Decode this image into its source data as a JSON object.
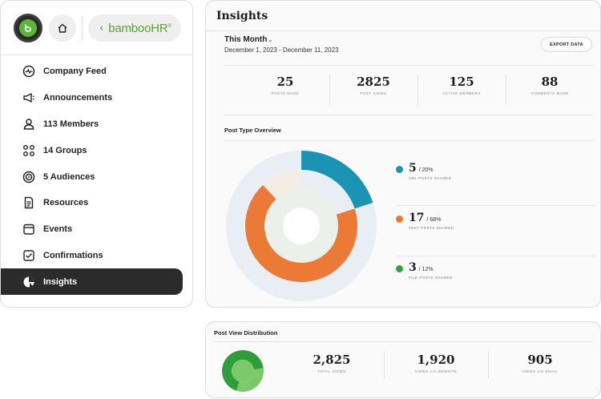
{
  "brand": {
    "name": "bambooHR",
    "mark": "®"
  },
  "sidebar": {
    "items": [
      {
        "label": "Company Feed",
        "icon": "pulse-icon",
        "active": false
      },
      {
        "label": "Announcements",
        "icon": "megaphone-icon",
        "active": false
      },
      {
        "label": "113 Members",
        "icon": "person-icon",
        "active": false
      },
      {
        "label": "14 Groups",
        "icon": "groups-icon",
        "active": false
      },
      {
        "label": "5 Audiences",
        "icon": "target-icon",
        "active": false
      },
      {
        "label": "Resources",
        "icon": "document-icon",
        "active": false
      },
      {
        "label": "Events",
        "icon": "calendar-icon",
        "active": false
      },
      {
        "label": "Confirmations",
        "icon": "checkbox-icon",
        "active": false
      },
      {
        "label": "Insights",
        "icon": "pie-chart-icon",
        "active": true
      }
    ]
  },
  "insights": {
    "title": "Insights",
    "range_label": "This Month",
    "range_dates": "December 1, 2023 - December 11, 2023",
    "export_label": "EXPORT DATA",
    "stats": [
      {
        "value": "25",
        "label": "POSTS MADE"
      },
      {
        "value": "2825",
        "label": "POST VIEWS"
      },
      {
        "value": "125",
        "label": "ACTIVE MEMBERS"
      },
      {
        "value": "88",
        "label": "COMMENTS MADE"
      }
    ],
    "post_type_title": "Post Type Overview",
    "post_types": [
      {
        "count": "5",
        "pct": "/ 20%",
        "label": "URL POSTS SHARED",
        "color": "#1a93b5"
      },
      {
        "count": "17",
        "pct": "/ 68%",
        "label": "TEXT POSTS SHARED",
        "color": "#ec7a37"
      },
      {
        "count": "3",
        "pct": "/ 12%",
        "label": "FILE POSTS SHARED",
        "color": "#2fa33d"
      }
    ]
  },
  "chart_data": [
    {
      "type": "pie",
      "title": "Post Type Overview",
      "categories": [
        "URL POSTS SHARED",
        "TEXT POSTS SHARED",
        "FILE POSTS SHARED"
      ],
      "values": [
        20,
        68,
        12
      ],
      "colors": [
        "#1a93b5",
        "#ec7a37",
        "#f6ece6"
      ]
    },
    {
      "type": "pie",
      "title": "Post View Distribution",
      "categories": [
        "VIEWS VIA WEBSITE",
        "VIEWS VIA EMAIL"
      ],
      "values": [
        1920,
        905
      ],
      "colors": [
        "#2f9e3a",
        "#7cc96b"
      ]
    }
  ],
  "distribution": {
    "title": "Post View Distribution",
    "stats": [
      {
        "value": "2,825",
        "label": "TOTAL VIEWS"
      },
      {
        "value": "1,920",
        "label": "VIEWS VIA WEBSITE"
      },
      {
        "value": "905",
        "label": "VIEWS VIA EMAIL"
      }
    ]
  }
}
